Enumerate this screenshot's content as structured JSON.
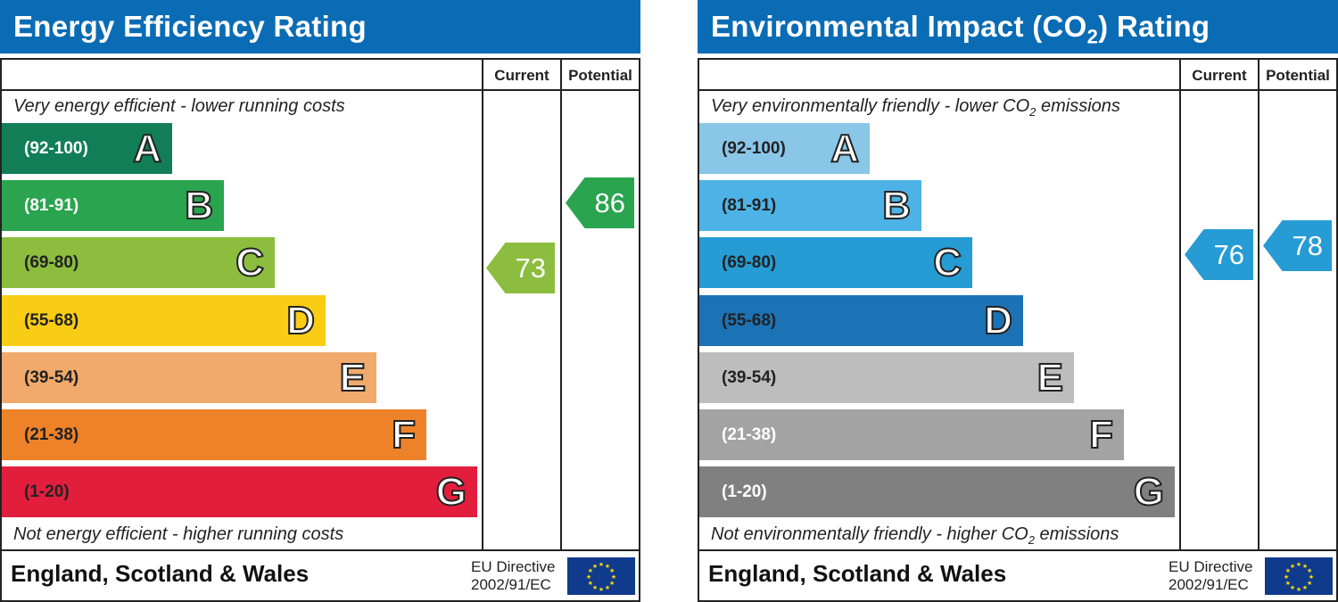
{
  "chart_data": [
    {
      "type": "bar",
      "title": "Energy Efficiency Rating",
      "column_headers": [
        "Current",
        "Potential"
      ],
      "top_note": "Very energy efficient - lower running costs",
      "bottom_note": "Not energy efficient - higher running costs",
      "bands": [
        {
          "letter": "A",
          "range": "(92-100)",
          "color": "#117e58",
          "text_color": "#ffffff"
        },
        {
          "letter": "B",
          "range": "(81-91)",
          "color": "#2aa44e",
          "text_color": "#ffffff"
        },
        {
          "letter": "C",
          "range": "(69-80)",
          "color": "#8cbd3f",
          "text_color": "#222222"
        },
        {
          "letter": "D",
          "range": "(55-68)",
          "color": "#f8cd14",
          "text_color": "#222222"
        },
        {
          "letter": "E",
          "range": "(39-54)",
          "color": "#f1aa6b",
          "text_color": "#222222"
        },
        {
          "letter": "F",
          "range": "(21-38)",
          "color": "#ee8229",
          "text_color": "#222222"
        },
        {
          "letter": "G",
          "range": "(1-20)",
          "color": "#e21e3c",
          "text_color": "#222222"
        }
      ],
      "current": {
        "value": "73",
        "color": "#8cbd3f"
      },
      "potential": {
        "value": "86",
        "color": "#2aa44e"
      },
      "footer": "England, Scotland & Wales",
      "directive_line1": "EU Directive",
      "directive_line2": "2002/91/EC"
    },
    {
      "type": "bar",
      "title": "Environmental Impact (CO2) Rating",
      "column_headers": [
        "Current",
        "Potential"
      ],
      "top_note": "Very environmentally friendly - lower CO2 emissions",
      "bottom_note": "Not environmentally friendly - higher CO2 emissions",
      "bands": [
        {
          "letter": "A",
          "range": "(92-100)",
          "color": "#89c6e8",
          "text_color": "#222222"
        },
        {
          "letter": "B",
          "range": "(81-91)",
          "color": "#4db3e6",
          "text_color": "#222222"
        },
        {
          "letter": "C",
          "range": "(69-80)",
          "color": "#269bd4",
          "text_color": "#222222"
        },
        {
          "letter": "D",
          "range": "(55-68)",
          "color": "#1b73b6",
          "text_color": "#222222"
        },
        {
          "letter": "E",
          "range": "(39-54)",
          "color": "#bdbdbd",
          "text_color": "#222222"
        },
        {
          "letter": "F",
          "range": "(21-38)",
          "color": "#a3a3a3",
          "text_color": "#ffffff"
        },
        {
          "letter": "G",
          "range": "(1-20)",
          "color": "#808080",
          "text_color": "#ffffff"
        }
      ],
      "current": {
        "value": "76",
        "color": "#269bd4"
      },
      "potential": {
        "value": "78",
        "color": "#269bd4"
      },
      "footer": "England, Scotland & Wales",
      "directive_line1": "EU Directive",
      "directive_line2": "2002/91/EC"
    }
  ]
}
